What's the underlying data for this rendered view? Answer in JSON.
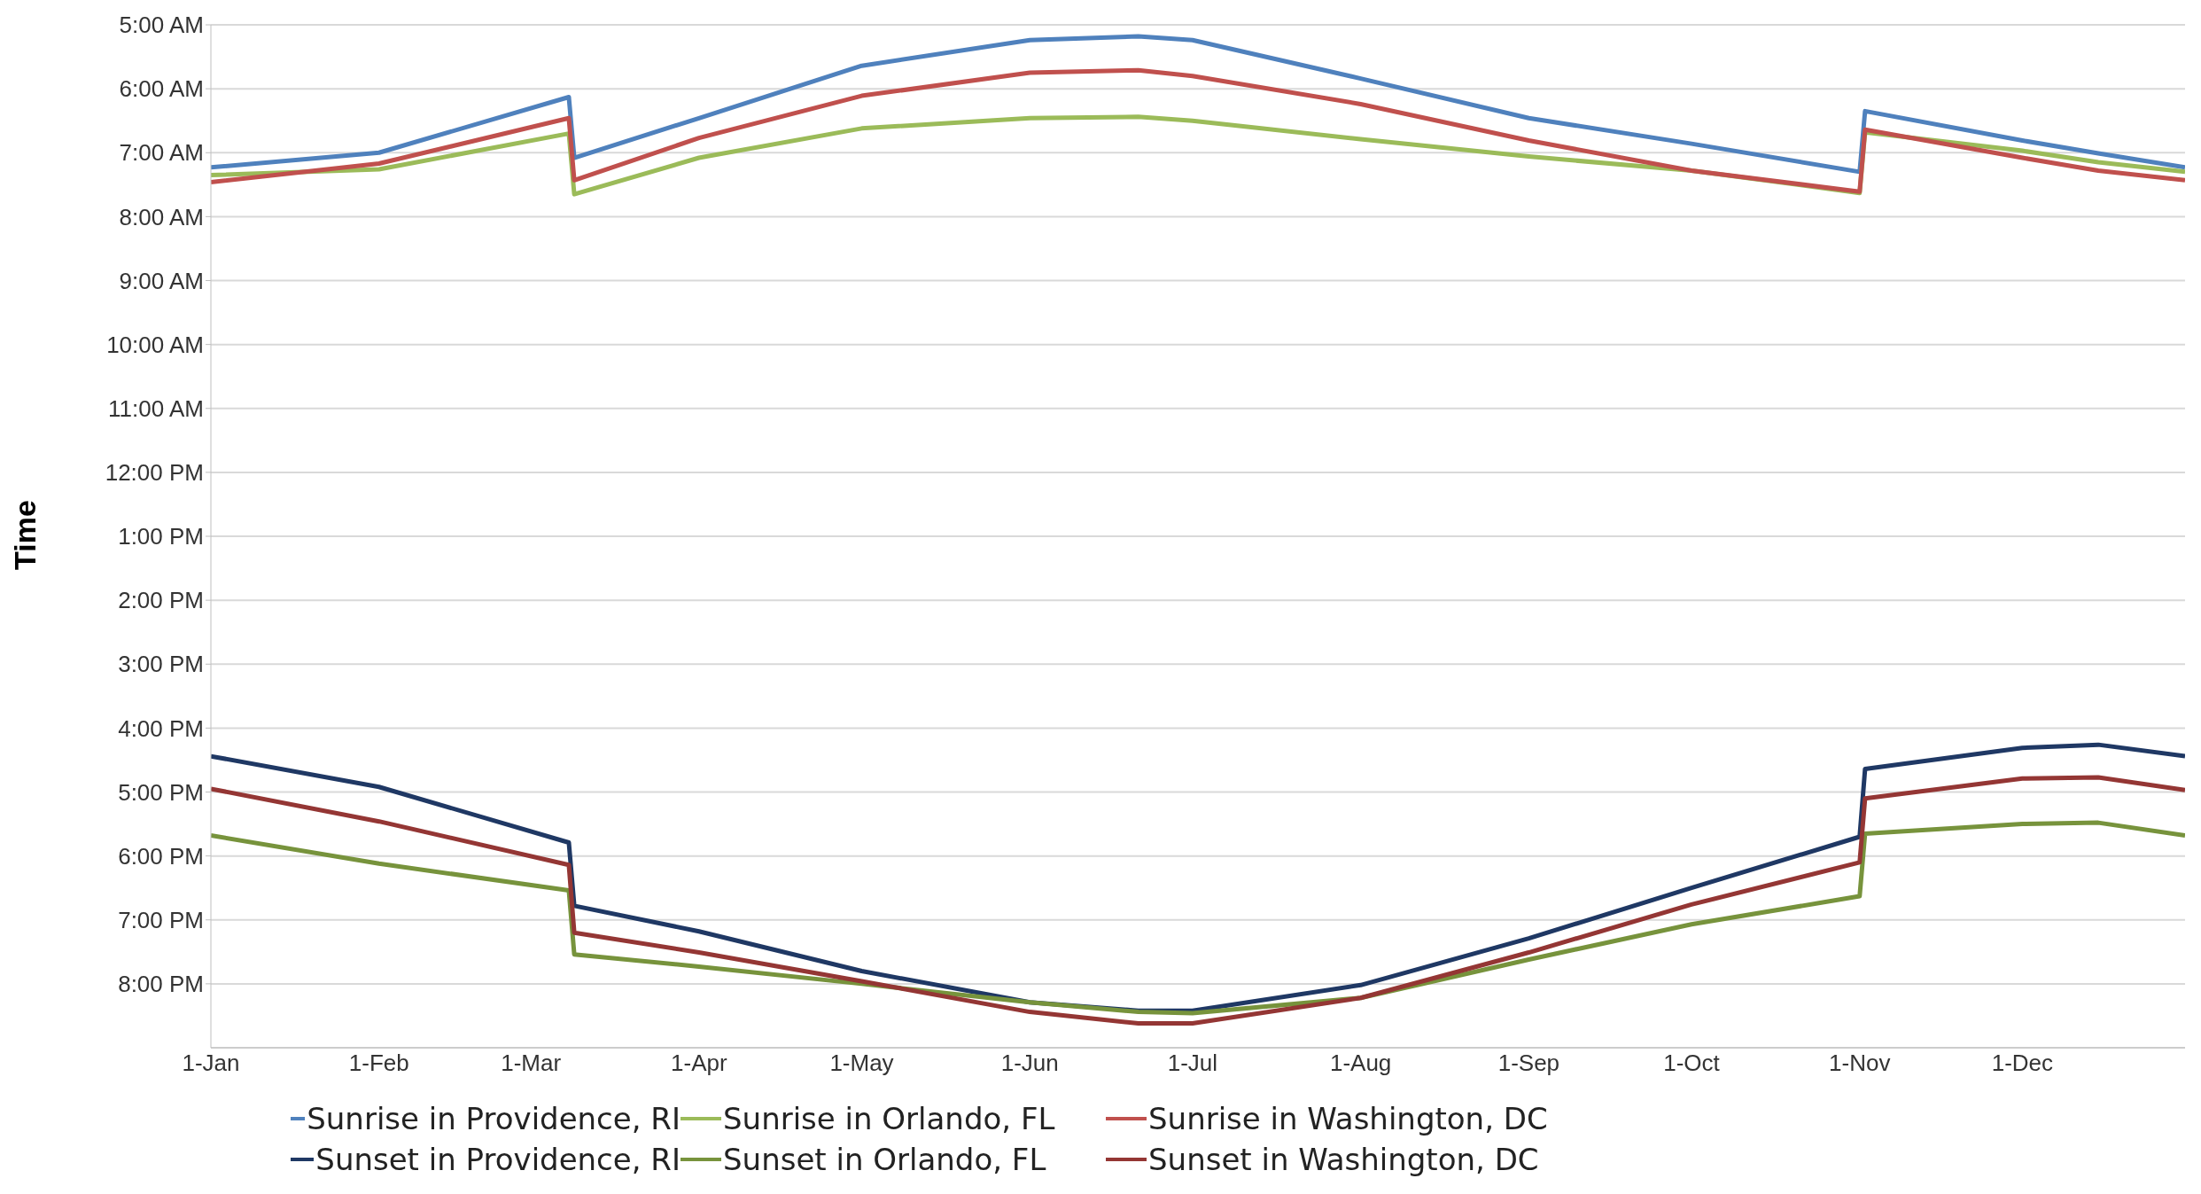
{
  "chart_data": {
    "type": "line",
    "ylabel": "Time",
    "x": [
      "--01-01",
      "--02-01",
      "--03-08",
      "--03-09",
      "--04-01",
      "--05-01",
      "--06-01",
      "--06-21",
      "--07-01",
      "--08-01",
      "--09-01",
      "--10-01",
      "--11-01",
      "--11-02",
      "--12-01",
      "--12-15",
      "--12-31"
    ],
    "series": [
      {
        "name": "Sunrise in Providence, RI",
        "color": "#4f81bd",
        "values": [
          7.23,
          7.0,
          6.13,
          7.08,
          6.46,
          5.64,
          5.24,
          5.18,
          5.24,
          5.84,
          6.46,
          6.86,
          7.3,
          6.35,
          6.81,
          7.01,
          7.23
        ]
      },
      {
        "name": "Sunrise in Orlando, FL",
        "color": "#9bbb59",
        "values": [
          7.35,
          7.26,
          6.7,
          7.65,
          7.08,
          6.62,
          6.46,
          6.44,
          6.5,
          6.79,
          7.06,
          7.28,
          7.63,
          6.68,
          6.97,
          7.15,
          7.3
        ]
      },
      {
        "name": "Sunrise in Washington, DC",
        "color": "#c0504d",
        "values": [
          7.46,
          7.17,
          6.46,
          7.43,
          6.77,
          6.11,
          5.75,
          5.71,
          5.8,
          6.24,
          6.81,
          7.28,
          7.61,
          6.64,
          7.08,
          7.28,
          7.43
        ]
      },
      {
        "name": "Sunset in Providence, RI",
        "color": "#1f3864",
        "values": [
          16.44,
          16.92,
          17.79,
          18.78,
          19.18,
          19.8,
          20.29,
          20.42,
          20.42,
          20.02,
          19.29,
          18.5,
          17.7,
          16.64,
          16.31,
          16.26,
          16.44
        ]
      },
      {
        "name": "Sunset in Orlando, FL",
        "color": "#77933c",
        "values": [
          17.68,
          18.12,
          18.54,
          19.54,
          19.73,
          20.0,
          20.29,
          20.44,
          20.46,
          20.22,
          19.62,
          19.07,
          18.63,
          17.65,
          17.5,
          17.48,
          17.68
        ]
      },
      {
        "name": "Sunset in Washington, DC",
        "color": "#943634",
        "values": [
          16.95,
          17.46,
          18.14,
          19.2,
          19.51,
          19.96,
          20.44,
          20.62,
          20.62,
          20.22,
          19.51,
          18.76,
          18.1,
          17.1,
          16.79,
          16.77,
          16.97
        ]
      }
    ],
    "xlim": [
      "--01-01",
      "--12-31"
    ],
    "xticks": [
      {
        "value": "--01-01",
        "label": "1-Jan"
      },
      {
        "value": "--02-01",
        "label": "1-Feb"
      },
      {
        "value": "--03-01",
        "label": "1-Mar"
      },
      {
        "value": "--04-01",
        "label": "1-Apr"
      },
      {
        "value": "--05-01",
        "label": "1-May"
      },
      {
        "value": "--06-01",
        "label": "1-Jun"
      },
      {
        "value": "--07-01",
        "label": "1-Jul"
      },
      {
        "value": "--08-01",
        "label": "1-Aug"
      },
      {
        "value": "--09-01",
        "label": "1-Sep"
      },
      {
        "value": "--10-01",
        "label": "1-Oct"
      },
      {
        "value": "--11-01",
        "label": "1-Nov"
      },
      {
        "value": "--12-01",
        "label": "1-Dec"
      }
    ],
    "ylim": [
      21,
      5
    ],
    "yticks": [
      {
        "value": 5,
        "label": "5:00 AM"
      },
      {
        "value": 6,
        "label": "6:00 AM"
      },
      {
        "value": 7,
        "label": "7:00 AM"
      },
      {
        "value": 8,
        "label": "8:00 AM"
      },
      {
        "value": 9,
        "label": "9:00 AM"
      },
      {
        "value": 10,
        "label": "10:00 AM"
      },
      {
        "value": 11,
        "label": "11:00 AM"
      },
      {
        "value": 12,
        "label": "12:00 PM"
      },
      {
        "value": 13,
        "label": "1:00 PM"
      },
      {
        "value": 14,
        "label": "2:00 PM"
      },
      {
        "value": 15,
        "label": "3:00 PM"
      },
      {
        "value": 16,
        "label": "4:00 PM"
      },
      {
        "value": 17,
        "label": "5:00 PM"
      },
      {
        "value": 18,
        "label": "6:00 PM"
      },
      {
        "value": 19,
        "label": "7:00 PM"
      },
      {
        "value": 20,
        "label": "8:00 PM"
      }
    ],
    "grid": "y",
    "legend": "bottom"
  }
}
